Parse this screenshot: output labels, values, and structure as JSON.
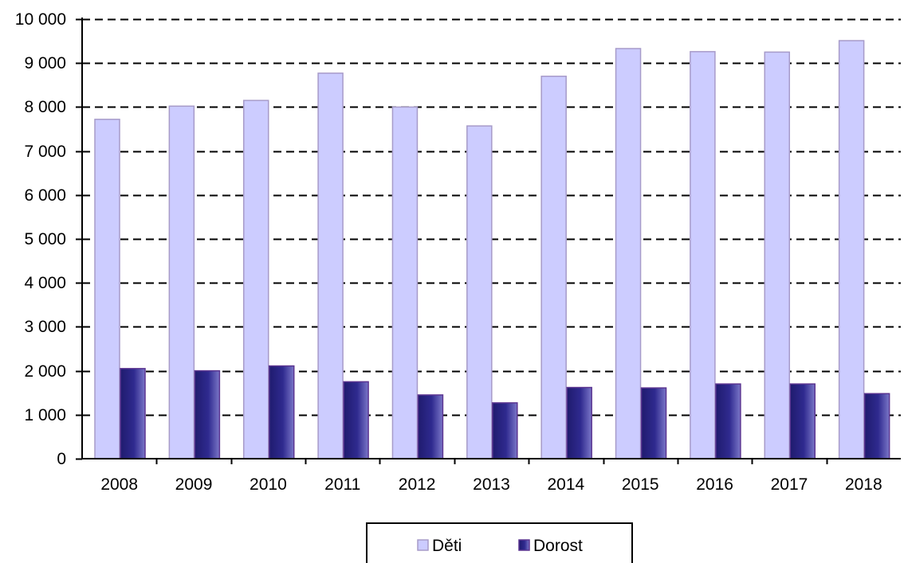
{
  "chart_data": {
    "type": "bar",
    "categories": [
      "2008",
      "2009",
      "2010",
      "2011",
      "2012",
      "2013",
      "2014",
      "2015",
      "2016",
      "2017",
      "2018"
    ],
    "series": [
      {
        "name": "Děti",
        "values": [
          7720,
          8020,
          8150,
          8770,
          8000,
          7570,
          8700,
          9330,
          9260,
          9250,
          9510
        ],
        "color": "#ccccff",
        "stroke": "#a79bc9"
      },
      {
        "name": "Dorost",
        "values": [
          2050,
          2000,
          2110,
          1750,
          1450,
          1270,
          1620,
          1610,
          1700,
          1700,
          1480
        ],
        "color": "#2b2785",
        "stroke": "#5b3591"
      }
    ],
    "ylim": [
      0,
      10000
    ],
    "yticks": [
      0,
      1000,
      2000,
      3000,
      4000,
      5000,
      6000,
      7000,
      8000,
      9000,
      10000
    ],
    "ytick_labels": [
      "0",
      "1 000",
      "2 000",
      "3 000",
      "4 000",
      "5 000",
      "6 000",
      "7 000",
      "8 000",
      "9 000",
      "10 000"
    ],
    "title": "",
    "xlabel": "",
    "ylabel": "",
    "grid": "dashed horizontal",
    "legend_position": "bottom-center"
  }
}
